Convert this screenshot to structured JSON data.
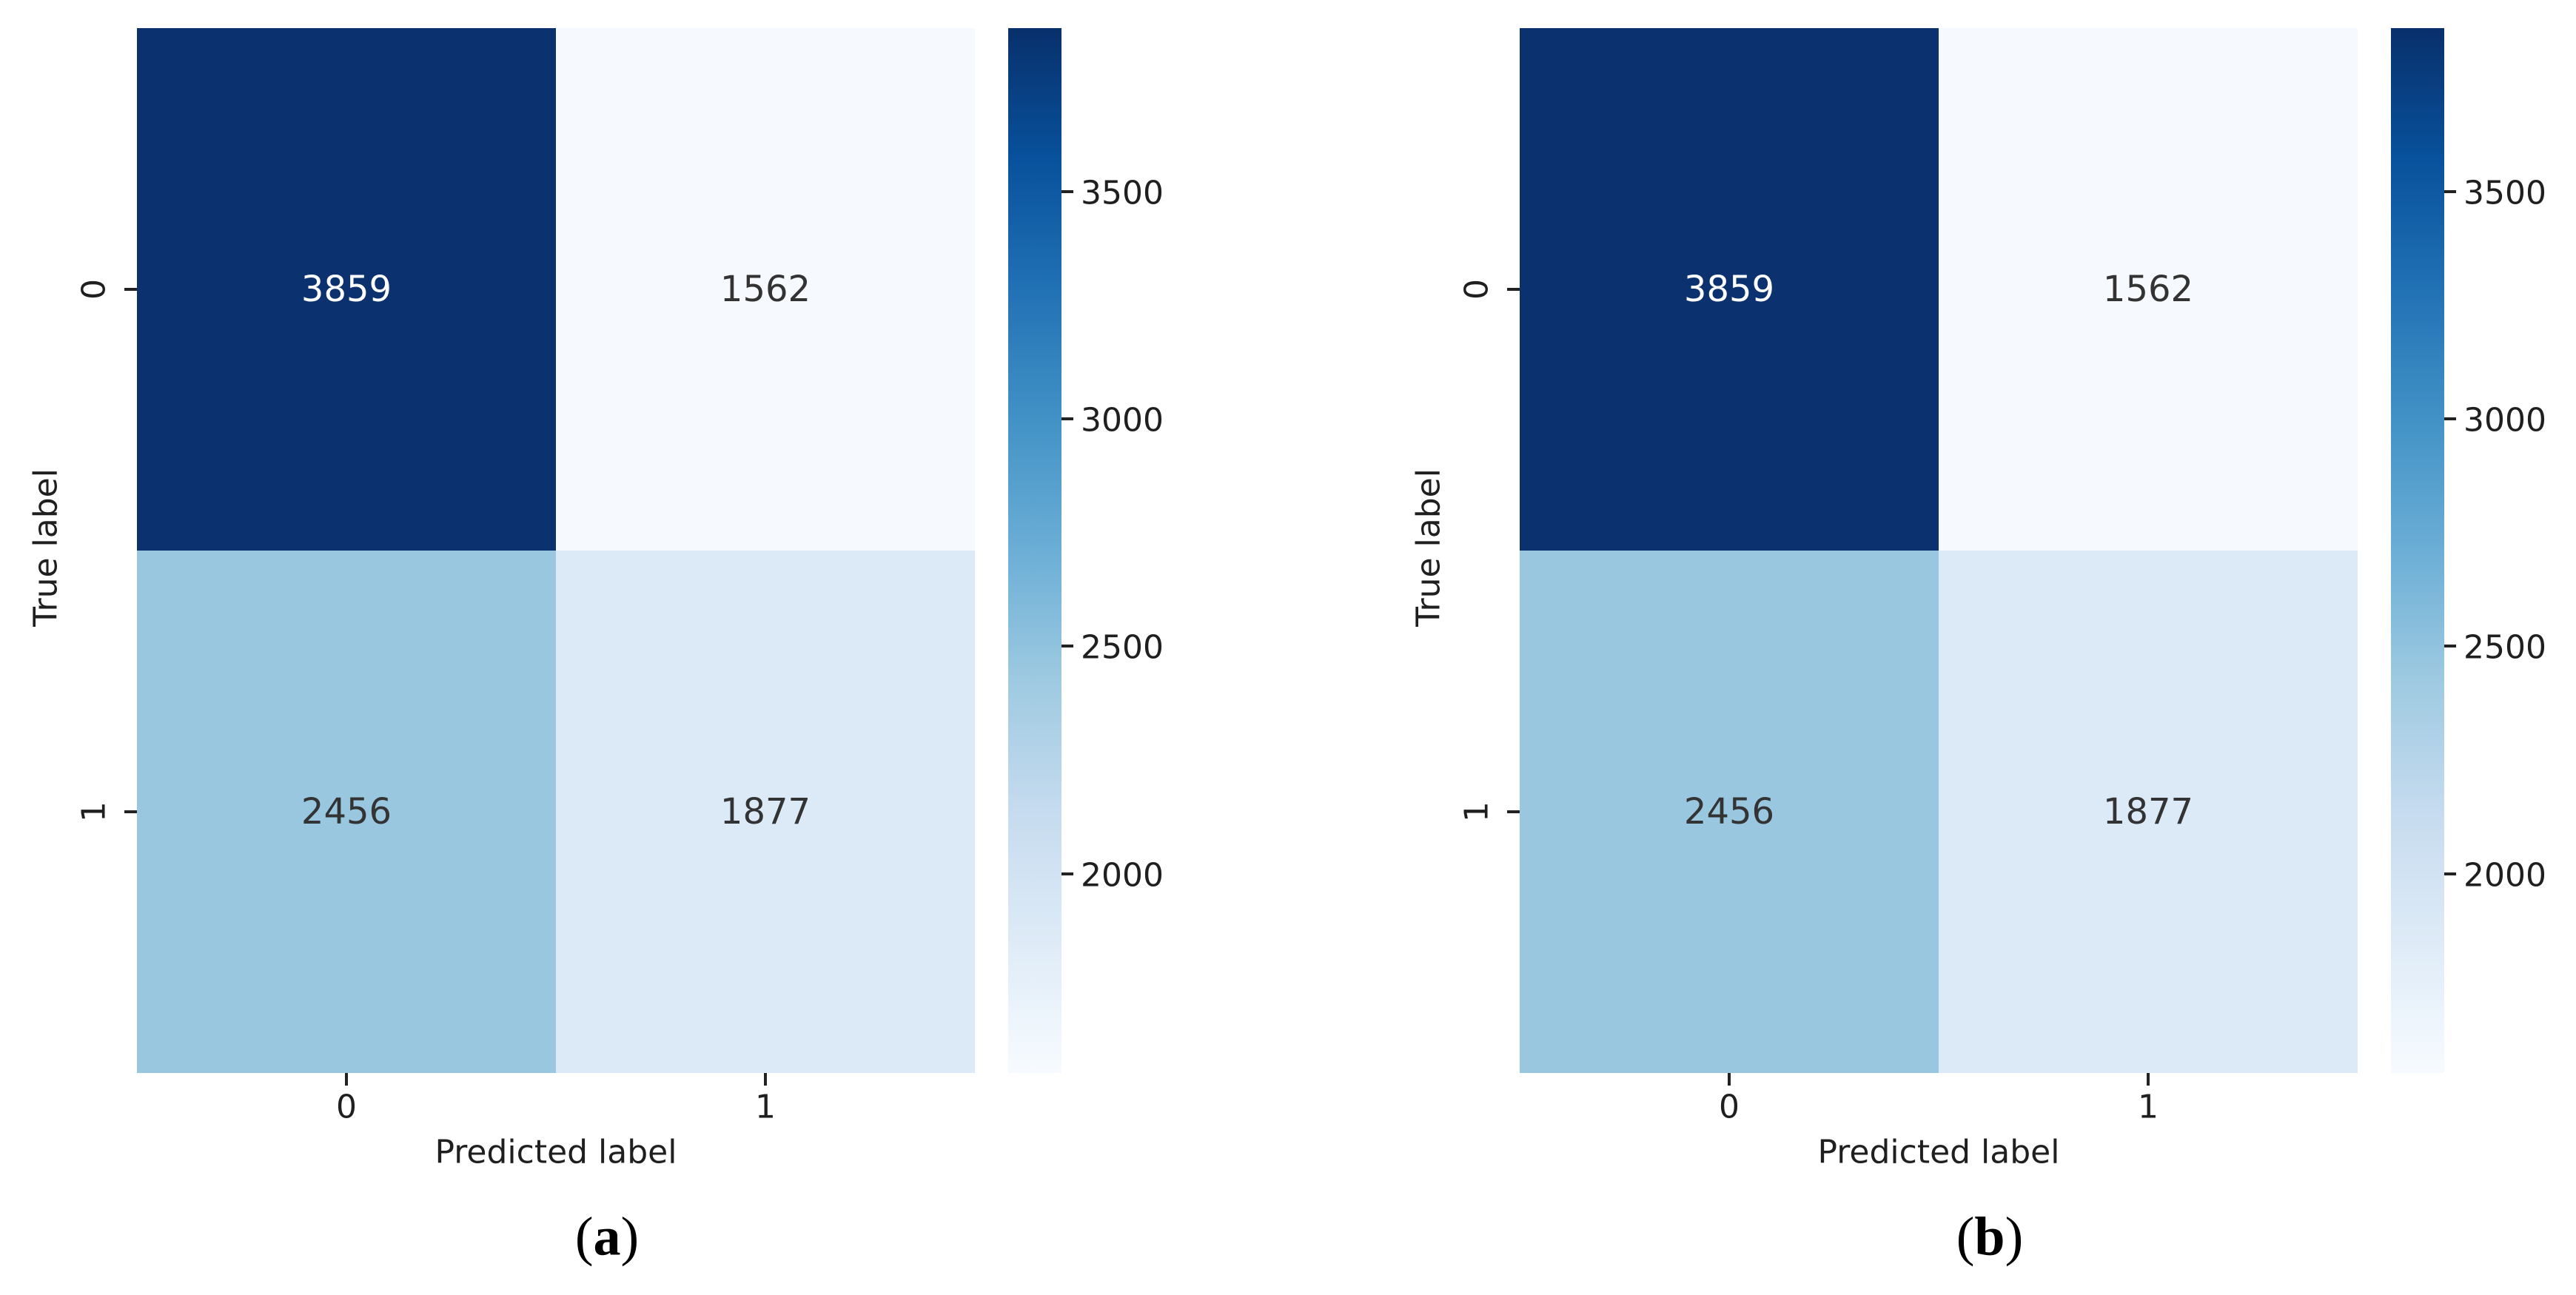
{
  "figure": {
    "background": "#ffffff",
    "panels": [
      {
        "caption": {
          "open": "(",
          "letter": "a",
          "close": ")"
        },
        "xlabel": "Predicted label",
        "ylabel": "True label",
        "xticks": [
          "0",
          "1"
        ],
        "yticks": [
          "0",
          "1"
        ],
        "cells": [
          {
            "value": "3859",
            "color": "#0b316e",
            "text_color": "#ffffff",
            "style": "background-color:#0b316e;color:#ffffff"
          },
          {
            "value": "1562",
            "color": "#f6fafe",
            "text_color": "#333333",
            "style": "background-color:#f6fafe;color:#333333"
          },
          {
            "value": "2456",
            "color": "#99c7e0",
            "text_color": "#333333",
            "style": "background-color:#99c7e0;color:#333333"
          },
          {
            "value": "1877",
            "color": "#dce9f6",
            "text_color": "#333333",
            "style": "background-color:#dce9f6;color:#333333"
          }
        ],
        "colorbar": {
          "ticks": [
            "3500",
            "3000",
            "2500",
            "2000"
          ]
        }
      },
      {
        "caption": {
          "open": "(",
          "letter": "b",
          "close": ")"
        },
        "xlabel": "Predicted label",
        "ylabel": "True label",
        "xticks": [
          "0",
          "1"
        ],
        "yticks": [
          "0",
          "1"
        ],
        "cells": [
          {
            "value": "3859",
            "color": "#0b316e",
            "text_color": "#ffffff",
            "style": "background-color:#0b316e;color:#ffffff"
          },
          {
            "value": "1562",
            "color": "#f6fafe",
            "text_color": "#333333",
            "style": "background-color:#f6fafe;color:#333333"
          },
          {
            "value": "2456",
            "color": "#99c7e0",
            "text_color": "#333333",
            "style": "background-color:#99c7e0;color:#333333"
          },
          {
            "value": "1877",
            "color": "#dce9f6",
            "text_color": "#333333",
            "style": "background-color:#dce9f6;color:#333333"
          }
        ],
        "colorbar": {
          "ticks": [
            "3500",
            "3000",
            "2500",
            "2000"
          ]
        }
      }
    ]
  },
  "chart_data": [
    {
      "type": "heatmap",
      "title": "(a)",
      "xlabel": "Predicted label",
      "ylabel": "True label",
      "x_categories": [
        "0",
        "1"
      ],
      "y_categories": [
        "0",
        "1"
      ],
      "values": [
        [
          3859,
          1562
        ],
        [
          2456,
          1877
        ]
      ],
      "vmin": 1562,
      "vmax": 3859,
      "colormap": "Blues",
      "colorbar_ticks": [
        2000,
        2500,
        3000,
        3500
      ],
      "cell_colors": [
        [
          "#0b316e",
          "#f6fafe"
        ],
        [
          "#99c7e0",
          "#dce9f6"
        ]
      ],
      "legend_position": "right-colorbar",
      "grid": false
    },
    {
      "type": "heatmap",
      "title": "(b)",
      "xlabel": "Predicted label",
      "ylabel": "True label",
      "x_categories": [
        "0",
        "1"
      ],
      "y_categories": [
        "0",
        "1"
      ],
      "values": [
        [
          3859,
          1562
        ],
        [
          2456,
          1877
        ]
      ],
      "vmin": 1562,
      "vmax": 3859,
      "colormap": "Blues",
      "colorbar_ticks": [
        2000,
        2500,
        3000,
        3500
      ],
      "cell_colors": [
        [
          "#0b316e",
          "#f6fafe"
        ],
        [
          "#99c7e0",
          "#dce9f6"
        ]
      ],
      "legend_position": "right-colorbar",
      "grid": false
    }
  ]
}
